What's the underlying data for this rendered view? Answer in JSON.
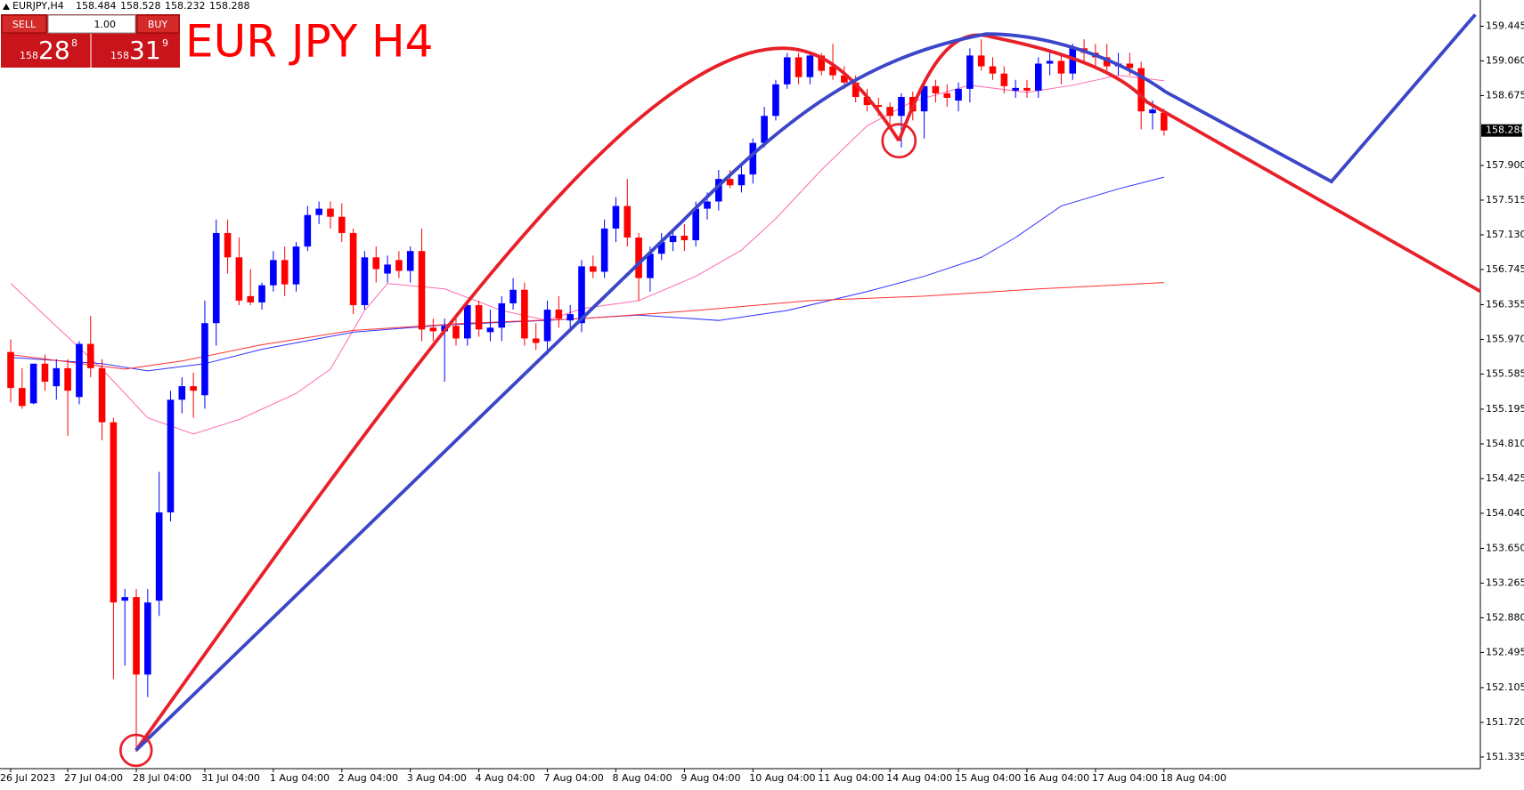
{
  "header": {
    "symbol": "EURJPY,H4"
  },
  "trade_panel": {
    "sell_label": "SELL",
    "buy_label": "BUY",
    "volume": "1.00",
    "sell_price": [
      "158",
      "28",
      "8"
    ],
    "buy_price": [
      "158",
      "31",
      "9"
    ]
  },
  "chart_data": {
    "type": "candlestick",
    "title": "EUR JPY H4",
    "up_color": "#0000ff",
    "down_color": "#ff0000",
    "categories": [
      "26 Jul 2023",
      null,
      null,
      null,
      null,
      "27 Jul 04:00",
      null,
      null,
      null,
      null,
      null,
      "28 Jul 04:00",
      null,
      null,
      null,
      null,
      null,
      "31 Jul 04:00",
      null,
      null,
      null,
      null,
      null,
      "1 Aug 04:00",
      null,
      null,
      null,
      null,
      null,
      "2 Aug 04:00",
      null,
      null,
      null,
      null,
      null,
      "3 Aug 04:00",
      null,
      null,
      null,
      null,
      null,
      "4 Aug 04:00",
      null,
      null,
      null,
      null,
      null,
      "7 Aug 04:00",
      null,
      null,
      null,
      null,
      null,
      "8 Aug 04:00",
      null,
      null,
      null,
      null,
      null,
      "9 Aug 04:00",
      null,
      null,
      null,
      null,
      null,
      "10 Aug 04:00",
      null,
      null,
      null,
      null,
      null,
      "11 Aug 04:00",
      null,
      null,
      null,
      null,
      null,
      "14 Aug 04:00",
      null,
      null,
      null,
      null,
      null,
      "15 Aug 04:00",
      null,
      null,
      null,
      null,
      null,
      "16 Aug 04:00",
      null,
      null,
      null,
      null,
      null,
      "17 Aug 04:00",
      null,
      null,
      null,
      null,
      null,
      "18 Aug 04:00"
    ],
    "open": [
      155.83,
      155.43,
      155.26,
      155.7,
      155.45,
      155.65,
      155.33,
      155.92,
      155.65,
      155.05,
      153.07,
      153.11,
      152.25,
      153.07,
      154.05,
      155.3,
      155.45,
      155.35,
      156.15,
      157.15,
      156.88,
      156.45,
      156.38,
      156.57,
      156.85,
      156.58,
      157.0,
      157.35,
      157.42,
      157.33,
      157.15,
      156.35,
      156.88,
      156.7,
      156.85,
      156.73,
      156.95,
      156.1,
      156.06,
      156.12,
      155.98,
      156.35,
      156.05,
      156.1,
      156.37,
      156.52,
      155.98,
      155.95,
      156.3,
      156.18,
      156.15,
      156.78,
      156.72,
      157.2,
      157.45,
      157.1,
      156.65,
      156.92,
      157.05,
      157.12,
      157.07,
      157.42,
      157.5,
      157.75,
      157.68,
      157.8,
      158.15,
      158.45,
      158.8,
      159.1,
      158.88,
      159.12,
      159.0,
      158.9,
      158.82,
      158.66,
      158.57,
      158.55,
      158.45,
      158.66,
      158.5,
      158.78,
      158.7,
      158.62,
      158.75,
      159.12,
      159.0,
      158.92,
      158.73,
      158.76,
      158.73,
      159.03,
      159.06,
      158.92,
      159.2,
      159.15,
      159.1,
      159.0,
      159.03,
      158.98,
      158.48,
      158.484
    ],
    "high": [
      155.97,
      155.65,
      155.7,
      155.8,
      155.75,
      155.75,
      155.95,
      156.23,
      155.75,
      155.1,
      153.2,
      153.2,
      153.2,
      154.5,
      155.4,
      155.55,
      155.6,
      156.4,
      157.3,
      157.3,
      157.1,
      156.75,
      156.6,
      156.95,
      157.0,
      157.05,
      157.45,
      157.5,
      157.5,
      157.48,
      157.2,
      156.95,
      157.0,
      156.9,
      156.95,
      157.0,
      157.2,
      156.2,
      156.2,
      156.25,
      156.4,
      156.4,
      156.3,
      156.45,
      156.65,
      156.6,
      156.15,
      156.4,
      156.45,
      156.35,
      156.85,
      156.9,
      157.3,
      157.55,
      157.75,
      157.15,
      157.0,
      157.15,
      157.2,
      157.25,
      157.5,
      157.6,
      157.85,
      157.85,
      157.9,
      158.2,
      158.55,
      158.85,
      159.15,
      159.15,
      159.15,
      159.15,
      159.25,
      159.0,
      158.9,
      158.75,
      158.65,
      158.6,
      158.7,
      158.72,
      158.85,
      158.85,
      158.8,
      158.82,
      159.2,
      159.3,
      159.1,
      159.0,
      158.85,
      158.85,
      159.1,
      159.15,
      159.15,
      159.25,
      159.3,
      159.25,
      159.25,
      159.15,
      159.15,
      159.05,
      158.62,
      158.528
    ],
    "low": [
      155.27,
      155.2,
      155.25,
      155.4,
      155.3,
      154.9,
      155.25,
      155.55,
      154.85,
      152.2,
      152.35,
      151.39,
      152.0,
      152.9,
      153.95,
      155.15,
      155.1,
      155.2,
      155.9,
      156.7,
      156.35,
      156.35,
      156.3,
      156.5,
      156.45,
      156.5,
      156.95,
      157.25,
      157.2,
      157.05,
      156.25,
      156.3,
      156.6,
      156.6,
      156.65,
      156.6,
      155.95,
      155.95,
      155.5,
      155.9,
      155.9,
      156.0,
      155.95,
      155.95,
      156.3,
      155.9,
      155.85,
      155.8,
      156.1,
      156.05,
      156.05,
      156.65,
      156.65,
      157.05,
      157.0,
      156.4,
      156.5,
      156.85,
      156.95,
      156.95,
      157.0,
      157.3,
      157.4,
      157.65,
      157.6,
      157.7,
      158.1,
      158.4,
      158.75,
      158.8,
      158.8,
      158.9,
      158.85,
      158.75,
      158.6,
      158.5,
      158.45,
      158.35,
      158.1,
      158.4,
      158.2,
      158.6,
      158.55,
      158.5,
      158.6,
      158.95,
      158.85,
      158.7,
      158.65,
      158.65,
      158.65,
      158.9,
      158.8,
      158.85,
      159.05,
      159.0,
      158.95,
      158.9,
      158.9,
      158.3,
      158.3,
      158.232
    ],
    "close": [
      155.43,
      155.23,
      155.7,
      155.5,
      155.65,
      155.4,
      155.92,
      155.65,
      155.05,
      153.05,
      153.11,
      152.25,
      153.05,
      154.05,
      155.3,
      155.45,
      155.4,
      156.15,
      157.15,
      156.88,
      156.4,
      156.38,
      156.57,
      156.85,
      156.58,
      157.0,
      157.35,
      157.42,
      157.33,
      157.15,
      156.35,
      156.88,
      156.75,
      156.8,
      156.73,
      156.95,
      156.08,
      156.06,
      156.12,
      155.98,
      156.35,
      156.08,
      156.1,
      156.37,
      156.52,
      155.98,
      155.93,
      156.3,
      156.2,
      156.25,
      156.78,
      156.72,
      157.2,
      157.45,
      157.1,
      156.65,
      156.92,
      157.05,
      157.12,
      157.07,
      157.42,
      157.5,
      157.75,
      157.68,
      157.8,
      158.15,
      158.45,
      158.8,
      159.1,
      158.88,
      159.12,
      158.95,
      158.9,
      158.82,
      158.66,
      158.57,
      158.55,
      158.45,
      158.66,
      158.5,
      158.78,
      158.7,
      158.65,
      158.75,
      159.12,
      159.0,
      158.92,
      158.78,
      158.76,
      158.73,
      159.03,
      159.06,
      158.92,
      159.2,
      159.15,
      159.1,
      159.0,
      159.03,
      158.98,
      158.5,
      158.52,
      158.288
    ],
    "indicators": [
      {
        "color": "#ff69b4",
        "x": [
          0,
          8,
          12,
          16,
          20,
          25,
          28,
          31,
          33,
          38,
          43,
          47,
          50,
          55,
          60,
          64,
          67,
          71,
          75,
          79,
          84,
          89,
          93,
          97,
          101
        ],
        "values": [
          156.59,
          155.64,
          155.1,
          154.92,
          155.08,
          155.37,
          155.64,
          156.29,
          156.59,
          156.53,
          156.29,
          156.18,
          156.31,
          156.4,
          156.67,
          156.96,
          157.31,
          157.85,
          158.34,
          158.61,
          158.79,
          158.71,
          158.79,
          158.9,
          158.84
        ]
      },
      {
        "color": "#3030ff",
        "x": [
          0,
          8,
          12,
          17,
          22,
          30,
          38,
          47,
          55,
          62,
          68,
          75,
          80,
          85,
          88,
          92,
          97,
          101
        ],
        "values": [
          155.77,
          155.7,
          155.62,
          155.7,
          155.86,
          156.05,
          156.13,
          156.18,
          156.24,
          156.18,
          156.29,
          156.5,
          156.67,
          156.88,
          157.1,
          157.45,
          157.64,
          157.77
        ]
      },
      {
        "color": "#ff3030",
        "x": [
          0,
          10,
          15,
          22,
          30,
          40,
          50,
          60,
          70,
          80,
          90,
          101
        ],
        "values": [
          155.8,
          155.64,
          155.73,
          155.91,
          156.07,
          156.15,
          156.2,
          156.29,
          156.4,
          156.45,
          156.53,
          156.6
        ]
      }
    ],
    "ylim": [
      151.206,
      159.736
    ],
    "yticks": [
      159.445,
      {
        "value": 159.06,
        "label": "159.060"
      },
      158.675,
      {
        "value": 157.9,
        "label": "157.900"
      },
      157.515,
      {
        "value": 157.13,
        "label": "157.130"
      },
      156.745,
      156.355,
      {
        "value": 155.97,
        "label": "155.970"
      },
      155.585,
      155.195,
      {
        "value": 154.81,
        "label": "154.810"
      },
      154.425,
      {
        "value": 154.04,
        "label": "154.040"
      },
      {
        "value": 153.65,
        "label": "153.650"
      },
      153.265,
      {
        "value": 152.88,
        "label": "152.880"
      },
      152.495,
      152.105,
      {
        "value": 151.72,
        "label": "151.720"
      },
      151.335
    ]
  }
}
